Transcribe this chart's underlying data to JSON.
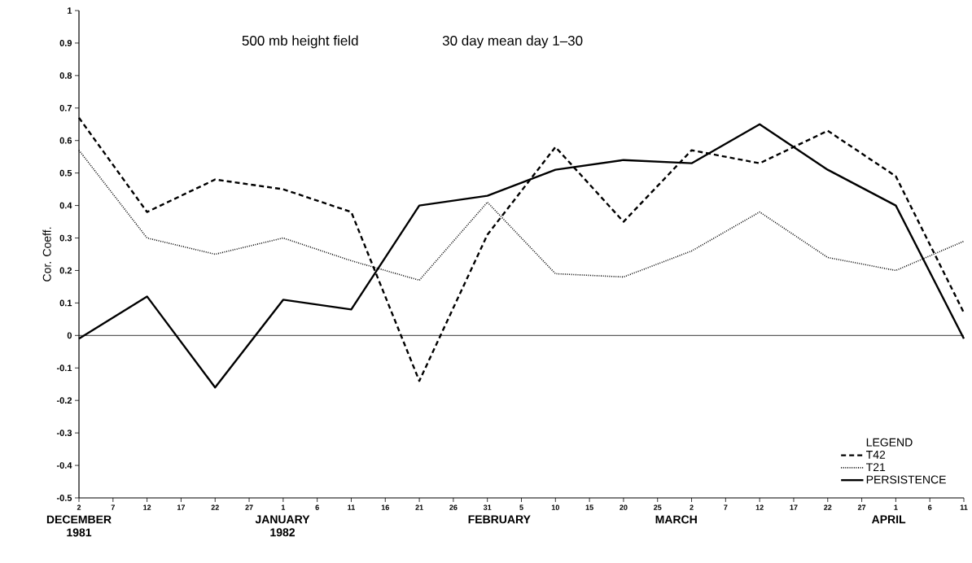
{
  "chart_data": {
    "type": "line",
    "title": "500 mb height field",
    "subtitle": "30 day mean day 1–30",
    "ylabel": "Cor. Coeff.",
    "legend_title": "LEGEND",
    "legend": "bottom right",
    "x": [
      "1981-12-02",
      "1981-12-12",
      "1981-12-22",
      "1982-01-01",
      "1982-01-11",
      "1982-01-21",
      "1982-01-31",
      "1982-02-10",
      "1982-02-20",
      "1982-03-02",
      "1982-03-12",
      "1982-03-22",
      "1982-04-01",
      "1982-04-11"
    ],
    "series": [
      {
        "name": "T42",
        "color": "#000000",
        "line_style": "dashed",
        "values": [
          0.67,
          0.38,
          0.48,
          0.45,
          0.38,
          -0.14,
          0.31,
          0.58,
          0.35,
          0.57,
          0.53,
          0.63,
          0.49,
          0.07
        ]
      },
      {
        "name": "T21",
        "color": "#000000",
        "line_style": "dotted",
        "values": [
          0.57,
          0.3,
          0.25,
          0.3,
          0.23,
          0.17,
          0.41,
          0.19,
          0.18,
          0.26,
          0.38,
          0.24,
          0.2,
          0.29
        ]
      },
      {
        "name": "PERSISTENCE",
        "color": "#000000",
        "line_style": "solid",
        "values": [
          -0.01,
          0.12,
          -0.16,
          0.11,
          0.08,
          0.4,
          0.43,
          0.51,
          0.54,
          0.53,
          0.65,
          0.51,
          0.4,
          -0.01
        ]
      }
    ],
    "xlim": [
      "1981-12-02",
      "1982-04-11"
    ],
    "xticks": [
      {
        "value": "1981-12-02",
        "label": "2"
      },
      {
        "value": "1981-12-07",
        "label": "7"
      },
      {
        "value": "1981-12-12",
        "label": "12"
      },
      {
        "value": "1981-12-17",
        "label": "17"
      },
      {
        "value": "1981-12-22",
        "label": "22"
      },
      {
        "value": "1981-12-27",
        "label": "27"
      },
      {
        "value": "1982-01-01",
        "label": "1"
      },
      {
        "value": "1982-01-06",
        "label": "6"
      },
      {
        "value": "1982-01-11",
        "label": "11"
      },
      {
        "value": "1982-01-16",
        "label": "16"
      },
      {
        "value": "1982-01-21",
        "label": "21"
      },
      {
        "value": "1982-01-26",
        "label": "26"
      },
      {
        "value": "1982-01-31",
        "label": "31"
      },
      {
        "value": "1982-02-05",
        "label": "5"
      },
      {
        "value": "1982-02-10",
        "label": "10"
      },
      {
        "value": "1982-02-15",
        "label": "15"
      },
      {
        "value": "1982-02-20",
        "label": "20"
      },
      {
        "value": "1982-02-25",
        "label": "25"
      },
      {
        "value": "1982-03-02",
        "label": "2"
      },
      {
        "value": "1982-03-07",
        "label": "7"
      },
      {
        "value": "1982-03-12",
        "label": "12"
      },
      {
        "value": "1982-03-17",
        "label": "17"
      },
      {
        "value": "1982-03-22",
        "label": "22"
      },
      {
        "value": "1982-03-27",
        "label": "27"
      },
      {
        "value": "1982-04-01",
        "label": "1"
      },
      {
        "value": "1982-04-06",
        "label": "6"
      },
      {
        "value": "1982-04-11",
        "label": "11"
      }
    ],
    "ylim": [
      -0.5,
      1
    ],
    "yticks": [
      -0.5,
      -0.4,
      -0.3,
      -0.2,
      -0.1,
      0,
      0.1,
      0.2,
      0.3,
      0.4,
      0.5,
      0.6,
      0.7,
      0.8,
      0.9,
      1
    ],
    "ref_lines": [
      {
        "axis": "y",
        "value": 0,
        "color": "#000000",
        "line_style": "solid"
      }
    ],
    "annotations": [
      "DECEMBER 1981",
      "JANUARY 1982",
      "FEBRUARY",
      "MARCH",
      "APRIL"
    ],
    "grid": false,
    "marker": "none"
  }
}
